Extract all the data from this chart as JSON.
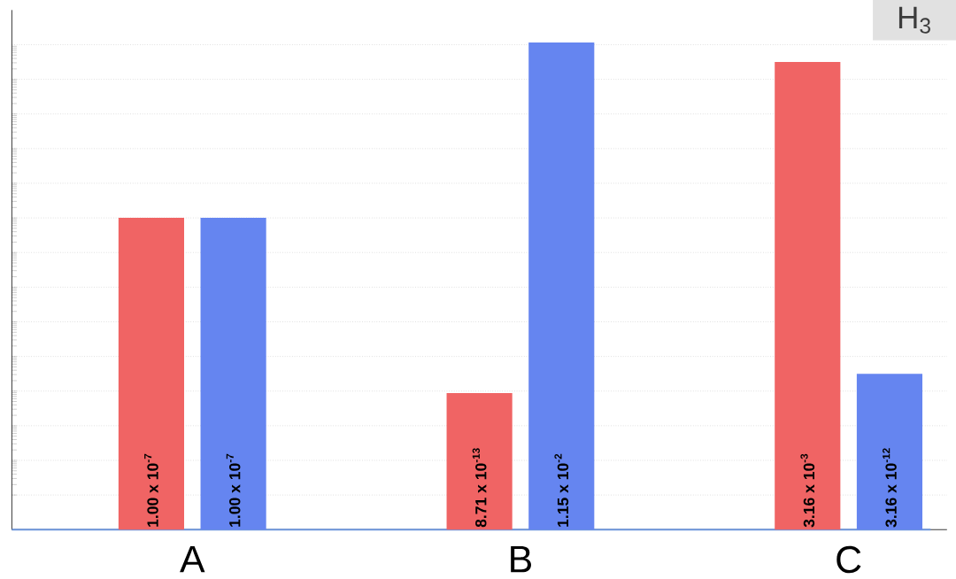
{
  "chart_data": {
    "type": "bar",
    "log": "y",
    "categories": [
      "A",
      "B",
      "C"
    ],
    "ylim": [
      1e-16,
      0.1
    ],
    "yticks": [
      {
        "value": 1e-15,
        "label": null
      },
      {
        "value": 1e-14,
        "label": null
      },
      {
        "value": 1e-13,
        "label": null
      },
      {
        "value": 1e-12,
        "label": null
      },
      {
        "value": 1e-11,
        "label": null
      },
      {
        "value": 1e-10,
        "label": null
      },
      {
        "value": 1e-09,
        "label": null
      },
      {
        "value": 1e-08,
        "label": null
      },
      {
        "value": 1e-07,
        "label": null
      },
      {
        "value": 1e-06,
        "label": null
      },
      {
        "value": 1e-05,
        "label": null
      },
      {
        "value": 0.0001,
        "label": null
      },
      {
        "value": 0.001,
        "label": null
      },
      {
        "value": 0.01,
        "label": null
      }
    ],
    "grid": "y",
    "tick_labels": "x",
    "series": [
      {
        "color": "#f06464",
        "values": [
          1e-07,
          8.71e-13,
          0.00316
        ],
        "value_labels": [
          "1.00 x 10$^{-7}$",
          "8.71 x 10$^{-13}$",
          "3.16 x 10$^{-3}$"
        ]
      },
      {
        "color": "#6585f0",
        "values": [
          1e-07,
          0.0115,
          3.16e-12
        ],
        "value_labels": [
          "1.00 x 10$^{-7}$",
          "1.15 x 10$^{-2}$",
          "3.16 x 10$^{-12}$"
        ]
      }
    ],
    "annotations": [
      "H$_{3}$"
    ]
  }
}
